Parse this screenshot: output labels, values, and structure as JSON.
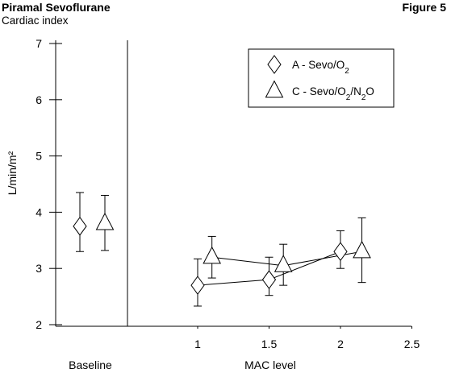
{
  "header": {
    "title": "Piramal Sevoflurane",
    "figure_label": "Figure 5",
    "subtitle": "Cardiac index"
  },
  "chart_data": {
    "type": "scatter",
    "ylabel": "L/min/m²",
    "xlabel": "MAC level",
    "baseline_label": "Baseline",
    "ylim": [
      2,
      7
    ],
    "yticks": [
      "2",
      "3",
      "4",
      "5",
      "6",
      "7"
    ],
    "xlim": [
      0.5,
      2.5
    ],
    "xticks": [
      "1",
      "1.5",
      "2",
      "2.5"
    ],
    "legend_position": "top-right",
    "series": [
      {
        "name": "A - Sevo/O2",
        "marker": "diamond",
        "baseline": {
          "y": 3.75,
          "err_low": 3.3,
          "err_high": 4.35
        },
        "points": [
          {
            "x": 1.0,
            "y": 2.7,
            "err_low": 2.33,
            "err_high": 3.17
          },
          {
            "x": 1.5,
            "y": 2.8,
            "err_low": 2.52,
            "err_high": 3.2
          },
          {
            "x": 2.0,
            "y": 3.3,
            "err_low": 3.0,
            "err_high": 3.67
          }
        ]
      },
      {
        "name": "C - Sevo/O2/N2O",
        "marker": "triangle",
        "baseline": {
          "y": 3.8,
          "err_low": 3.32,
          "err_high": 4.3
        },
        "points": [
          {
            "x": 1.1,
            "y": 3.2,
            "err_low": 2.83,
            "err_high": 3.57
          },
          {
            "x": 1.6,
            "y": 3.05,
            "err_low": 2.7,
            "err_high": 3.43
          },
          {
            "x": 2.15,
            "y": 3.3,
            "err_low": 2.75,
            "err_high": 3.9
          }
        ]
      }
    ]
  }
}
